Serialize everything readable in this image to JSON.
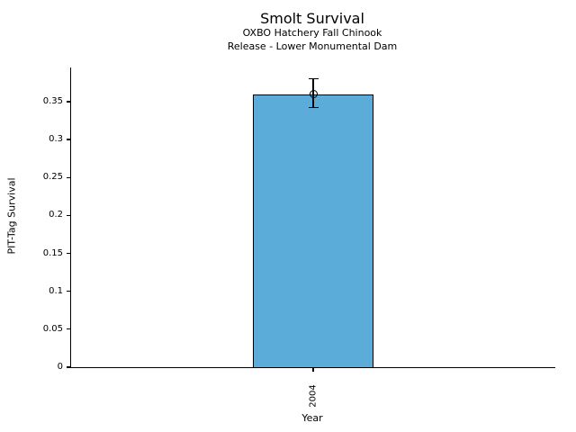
{
  "figure": {
    "background_color": "#ffffff",
    "text_color": "#000000"
  },
  "chart_data": {
    "type": "bar",
    "title": "Smolt Survival",
    "subtitle_line1": "OXBO Hatchery Fall Chinook",
    "subtitle_line2": "Release - Lower Monumental Dam",
    "xlabel": "Year",
    "ylabel": "PIT-Tag Survival",
    "categories": [
      "2004"
    ],
    "values": [
      0.36
    ],
    "error_bars": [
      {
        "lower": 0.342,
        "upper": 0.38
      }
    ],
    "marker": "open-circle",
    "ylim": [
      0,
      0.395
    ],
    "yticks": [
      0,
      0.05,
      0.1,
      0.15,
      0.2,
      0.25,
      0.3,
      0.35
    ],
    "ytick_labels": [
      "0",
      "0.05",
      "0.1",
      "0.15",
      "0.2",
      "0.25",
      "0.3",
      "0.35"
    ],
    "grid": false,
    "legend": null,
    "bar_color": "#5BACD8",
    "bar_edge_color": "#000000",
    "axis_color": "#000000"
  }
}
